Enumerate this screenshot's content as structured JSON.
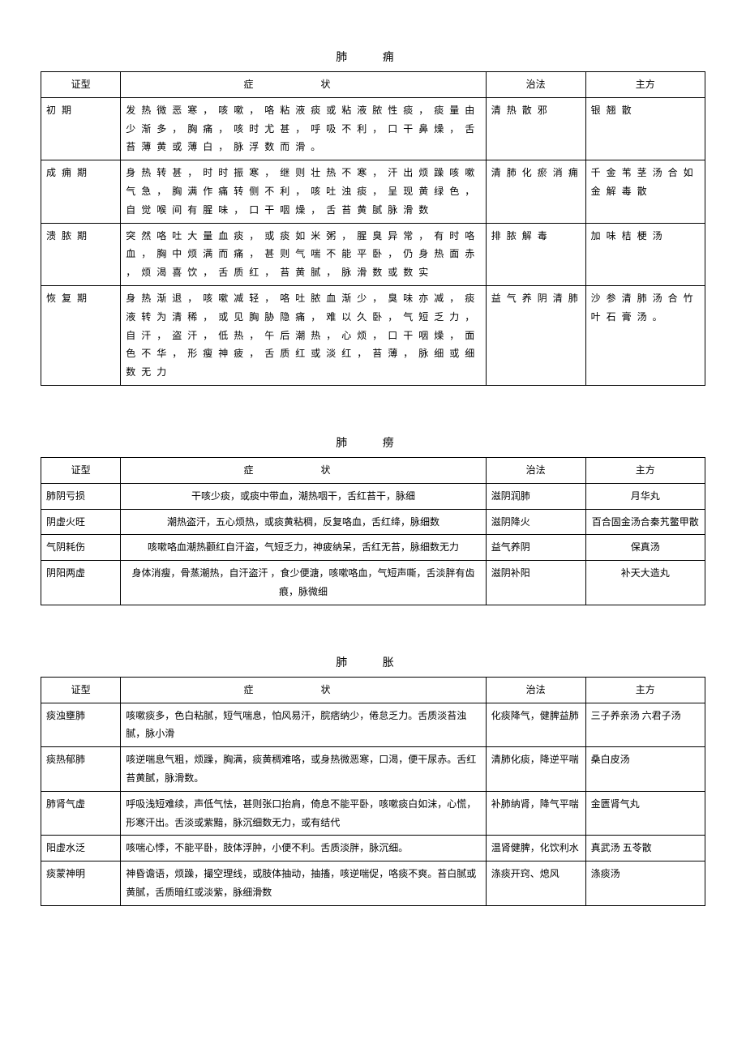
{
  "table1": {
    "title": "肺 痈",
    "headers": {
      "type": "证型",
      "symptoms": "症 状",
      "treatment": "治法",
      "formula": "主方"
    },
    "rows": [
      {
        "type": "初 期",
        "symptoms": "发 热 微 恶 寒 ， 咳 嗽 ， 咯 粘 液 痰 或 粘 液 脓 性 痰 ， 痰 量 由 少 渐 多 ， 胸 痛 ， 咳 时 尤 甚 ， 呼 吸 不 利 ， 口 干 鼻 燥 ， 舌 苔 薄 黄 或 薄 白 ， 脉 浮 数 而 滑 。",
        "treatment": "清 热 散 邪",
        "formula": "银 翘 散"
      },
      {
        "type": "成 痈 期",
        "symptoms": "身 热 转 甚 ， 时 时 振 寒 ， 继 则 壮 热 不 寒 ， 汗 出 烦 躁 咳 嗽 气 急 ， 胸 满 作 痛 转 侧 不 利 ， 咳 吐 浊 痰 ， 呈 现 黄 绿 色 ， 自 觉 喉 间 有 腥 味 ， 口 干 咽 燥 ， 舌 苔 黄 腻 脉 滑 数",
        "treatment": "清 肺 化 瘀 消 痈",
        "formula": "千 金 苇 茎 汤 合 如 金 解 毒 散"
      },
      {
        "type": "溃 脓 期",
        "symptoms": "突 然 咯 吐 大 量 血 痰 ， 或 痰 如 米 粥 ， 腥 臭 异 常 ， 有 时 咯 血 ， 胸 中 烦 满 而 痛 ， 甚 则 气 喘 不 能 平 卧 ， 仍 身 热 面 赤 ， 烦 渴 喜 饮 ， 舌 质 红 ， 苔 黄 腻 ， 脉 滑 数 或 数 实",
        "treatment": "排 脓 解 毒",
        "formula": "加 味 桔 梗 汤"
      },
      {
        "type": "恢 复 期",
        "symptoms": "身 热 渐 退 ， 咳 嗽 减 轻 ， 咯 吐 脓 血 渐 少 ， 臭 味 亦 减 ， 痰 液 转 为 清 稀 ， 或 见 胸 胁 隐 痛 ， 难 以 久 卧 ， 气 短 乏 力 ， 自 汗 ， 盗 汗 ， 低 热 ， 午 后 潮 热 ， 心 烦 ， 口 干 咽 燥 ， 面 色 不 华 ， 形 瘦 神 疲 ， 舌 质 红 或 淡 红 ， 苔 薄 ， 脉 细 或 细 数 无 力",
        "treatment": "益 气 养 阴 清 肺",
        "formula": "沙 参 清 肺 汤 合 竹 叶 石 膏 汤 。"
      }
    ]
  },
  "table2": {
    "title": "肺 痨",
    "headers": {
      "type": "证型",
      "symptoms": "症 状",
      "treatment": "治法",
      "formula": "主方"
    },
    "rows": [
      {
        "type": "肺阴亏损",
        "symptoms": "干咳少痰，或痰中带血，潮热咽干，舌红苔干，脉细",
        "treatment": "滋阴润肺",
        "formula": "月华丸"
      },
      {
        "type": "阴虚火旺",
        "symptoms": "潮热盗汗，五心烦热，或痰黄粘稠，反复咯血，舌红绛，脉细数",
        "treatment": "滋阴降火",
        "formula": "百合固金汤合秦艽鳖甲散"
      },
      {
        "type": "气阴耗伤",
        "symptoms": "咳嗽咯血潮热颧红自汗盗，气短乏力，神疲纳呆，舌红无苔，脉细数无力",
        "treatment": "益气养阴",
        "formula": "保真汤"
      },
      {
        "type": "阴阳两虚",
        "symptoms": "身体消瘦，骨蒸潮热，自汗盗汗 ，食少便溏，咳嗽咯血，气短声嘶，舌淡胖有齿痕，脉微细",
        "treatment": "滋阴补阳",
        "formula": "补天大造丸"
      }
    ]
  },
  "table3": {
    "title": "肺 胀",
    "headers": {
      "type": "证型",
      "symptoms": "症 状",
      "treatment": "治法",
      "formula": "主方"
    },
    "rows": [
      {
        "type": "痰浊壅肺",
        "symptoms": "咳嗽痰多，色白粘腻，短气喘息，怕风易汗，脘痞纳少，倦怠乏力。舌质淡苔浊腻，脉小滑",
        "treatment": "化痰降气，健脾益肺",
        "formula": "三子养亲汤 六君子汤"
      },
      {
        "type": "痰热郁肺",
        "symptoms": "咳逆喘息气粗，烦躁，胸满，痰黄稠难咯，或身热微恶寒，口渴，便干尿赤。舌红苔黄腻，脉滑数。",
        "treatment": "清肺化痰，降逆平喘",
        "formula": "桑白皮汤"
      },
      {
        "type": "肺肾气虚",
        "symptoms": "呼吸浅短难续，声低气怯，甚则张口抬肩，倚息不能平卧，咳嗽痰白如沫，心慌，形寒汗出。舌淡或紫黯，脉沉细数无力，或有结代",
        "treatment": "补肺纳肾，降气平喘",
        "formula": "金匮肾气丸"
      },
      {
        "type": "阳虚水泛",
        "symptoms": "咳喘心悸，不能平卧，肢体浮肿，小便不利。舌质淡胖，脉沉细。",
        "treatment": "温肾健脾，化饮利水",
        "formula": "真武汤 五苓散"
      },
      {
        "type": "痰蒙神明",
        "symptoms": "神昏谵语，烦躁，撮空理线，或肢体抽动，抽搐，咳逆喘促，咯痰不爽。苔白腻或黄腻，舌质暗红或淡紫，脉细滑数",
        "treatment": "涤痰开窍、熄风",
        "formula": "涤痰汤"
      }
    ]
  }
}
